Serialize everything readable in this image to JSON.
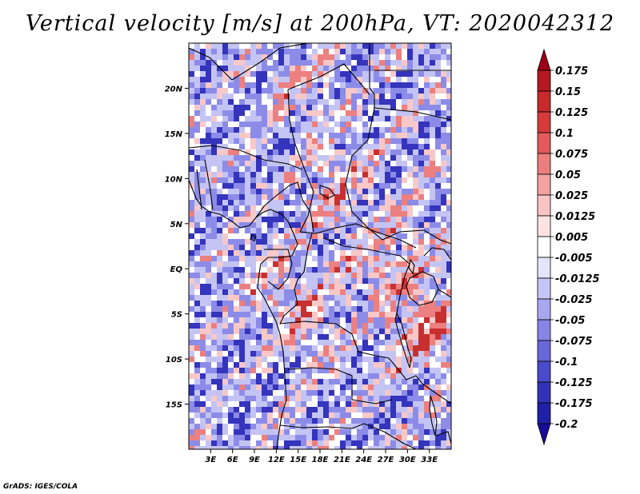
{
  "title": "Vertical velocity [m/s] at 200hPa, VT: 2020042312",
  "credit": "GrADS: IGES/COLA",
  "map": {
    "lon_range": [
      0,
      36
    ],
    "lat_range": [
      -20,
      25
    ],
    "lat_labels": [
      {
        "lat": 20,
        "text": "20N"
      },
      {
        "lat": 15,
        "text": "15N"
      },
      {
        "lat": 10,
        "text": "10N"
      },
      {
        "lat": 5,
        "text": "5N"
      },
      {
        "lat": 0,
        "text": "EQ"
      },
      {
        "lat": -5,
        "text": "5S"
      },
      {
        "lat": -10,
        "text": "10S"
      },
      {
        "lat": -15,
        "text": "15S"
      }
    ],
    "lon_labels": [
      {
        "lon": 3,
        "text": "3E"
      },
      {
        "lon": 6,
        "text": "6E"
      },
      {
        "lon": 9,
        "text": "9E"
      },
      {
        "lon": 12,
        "text": "12E"
      },
      {
        "lon": 15,
        "text": "15E"
      },
      {
        "lon": 18,
        "text": "18E"
      },
      {
        "lon": 21,
        "text": "21E"
      },
      {
        "lon": 24,
        "text": "24E"
      },
      {
        "lon": 27,
        "text": "27E"
      },
      {
        "lon": 30,
        "text": "30E"
      },
      {
        "lon": 33,
        "text": "33E"
      }
    ]
  },
  "colorbar": {
    "levels": [
      {
        "label": "0.175",
        "color": "#a50e1c"
      },
      {
        "label": "0.15",
        "color": "#b5181f"
      },
      {
        "label": "0.125",
        "color": "#c62a2a"
      },
      {
        "label": "0.1",
        "color": "#d63a3a"
      },
      {
        "label": "0.075",
        "color": "#e25a5a"
      },
      {
        "label": "0.05",
        "color": "#ec7e7e"
      },
      {
        "label": "0.025",
        "color": "#f3a2a2"
      },
      {
        "label": "0.0125",
        "color": "#f8c4c4"
      },
      {
        "label": "0.005",
        "color": "#fce3e3"
      },
      {
        "label": "-0.005",
        "color": "#ffffff"
      },
      {
        "label": "-0.0125",
        "color": "#e4e4fb"
      },
      {
        "label": "-0.025",
        "color": "#c6c6f6"
      },
      {
        "label": "-0.05",
        "color": "#a8a8f0"
      },
      {
        "label": "-0.075",
        "color": "#8686e6"
      },
      {
        "label": "-0.1",
        "color": "#6868dc"
      },
      {
        "label": "-0.125",
        "color": "#4a4acc"
      },
      {
        "label": "-0.175",
        "color": "#3232b8"
      },
      {
        "label": "-0.2",
        "color": "#2020a6"
      }
    ],
    "top_arrow_color": "#9e0014",
    "bottom_arrow_color": "#1a0a9a"
  },
  "field_colors": {
    "strong_pos": "#c83030",
    "mid_pos": "#ec8080",
    "weak_pos": "#f8c8c8",
    "neutral": "#ffffff",
    "weak_neg": "#c4c4f4",
    "mid_neg": "#8c8ce8",
    "strong_neg": "#3434bc"
  }
}
